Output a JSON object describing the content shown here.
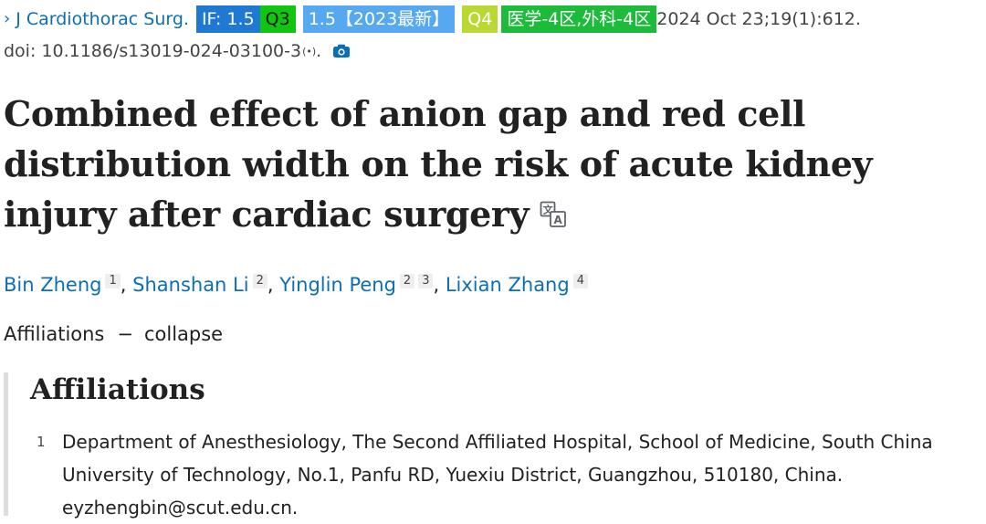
{
  "citation": {
    "chevron": "›",
    "journal": "J Cardiothorac Surg.",
    "if_badge": "IF: 1.5",
    "q3_badge": "Q3",
    "latest_badge": "1.5【2023最新】",
    "q4_badge": "Q4",
    "cas_badge": "医学-4区,外科-4区",
    "date": "2024 Oct 23;19(1):612.",
    "doi": "doi: 10.1186/s13019-024-03100-3",
    "doi_mark": "(•)",
    "doi_end": ".",
    "badge_colors": {
      "if": "#1f78d1",
      "q3": "#11c511",
      "latest": "#56a9f0",
      "q4": "#b9d832",
      "cas": "#1dbb3a"
    }
  },
  "article": {
    "title": "Combined effect of anion gap and red cell distribution width on the risk of acute kidney injury after cardiac surgery",
    "translate_icon": "translate-icon"
  },
  "authors": [
    {
      "name": "Bin Zheng",
      "affs": [
        "1"
      ]
    },
    {
      "name": "Shanshan Li",
      "affs": [
        "2"
      ]
    },
    {
      "name": "Yinglin Peng",
      "affs": [
        "2",
        "3"
      ]
    },
    {
      "name": "Lixian Zhang",
      "affs": [
        "4"
      ]
    }
  ],
  "affiliations_toggle": {
    "label": "Affiliations",
    "dash": "−",
    "action": "collapse"
  },
  "affiliations": {
    "heading": "Affiliations",
    "items": [
      {
        "num": "1",
        "text": "Department of Anesthesiology, The Second Affiliated Hospital, School of Medicine, South China University of Technology, No.1, Panfu RD, Yuexiu District, Guangzhou, 510180, China. eyzhengbin@scut.edu.cn."
      }
    ]
  },
  "colors": {
    "link": "#0b6fb8",
    "text": "#212121"
  }
}
